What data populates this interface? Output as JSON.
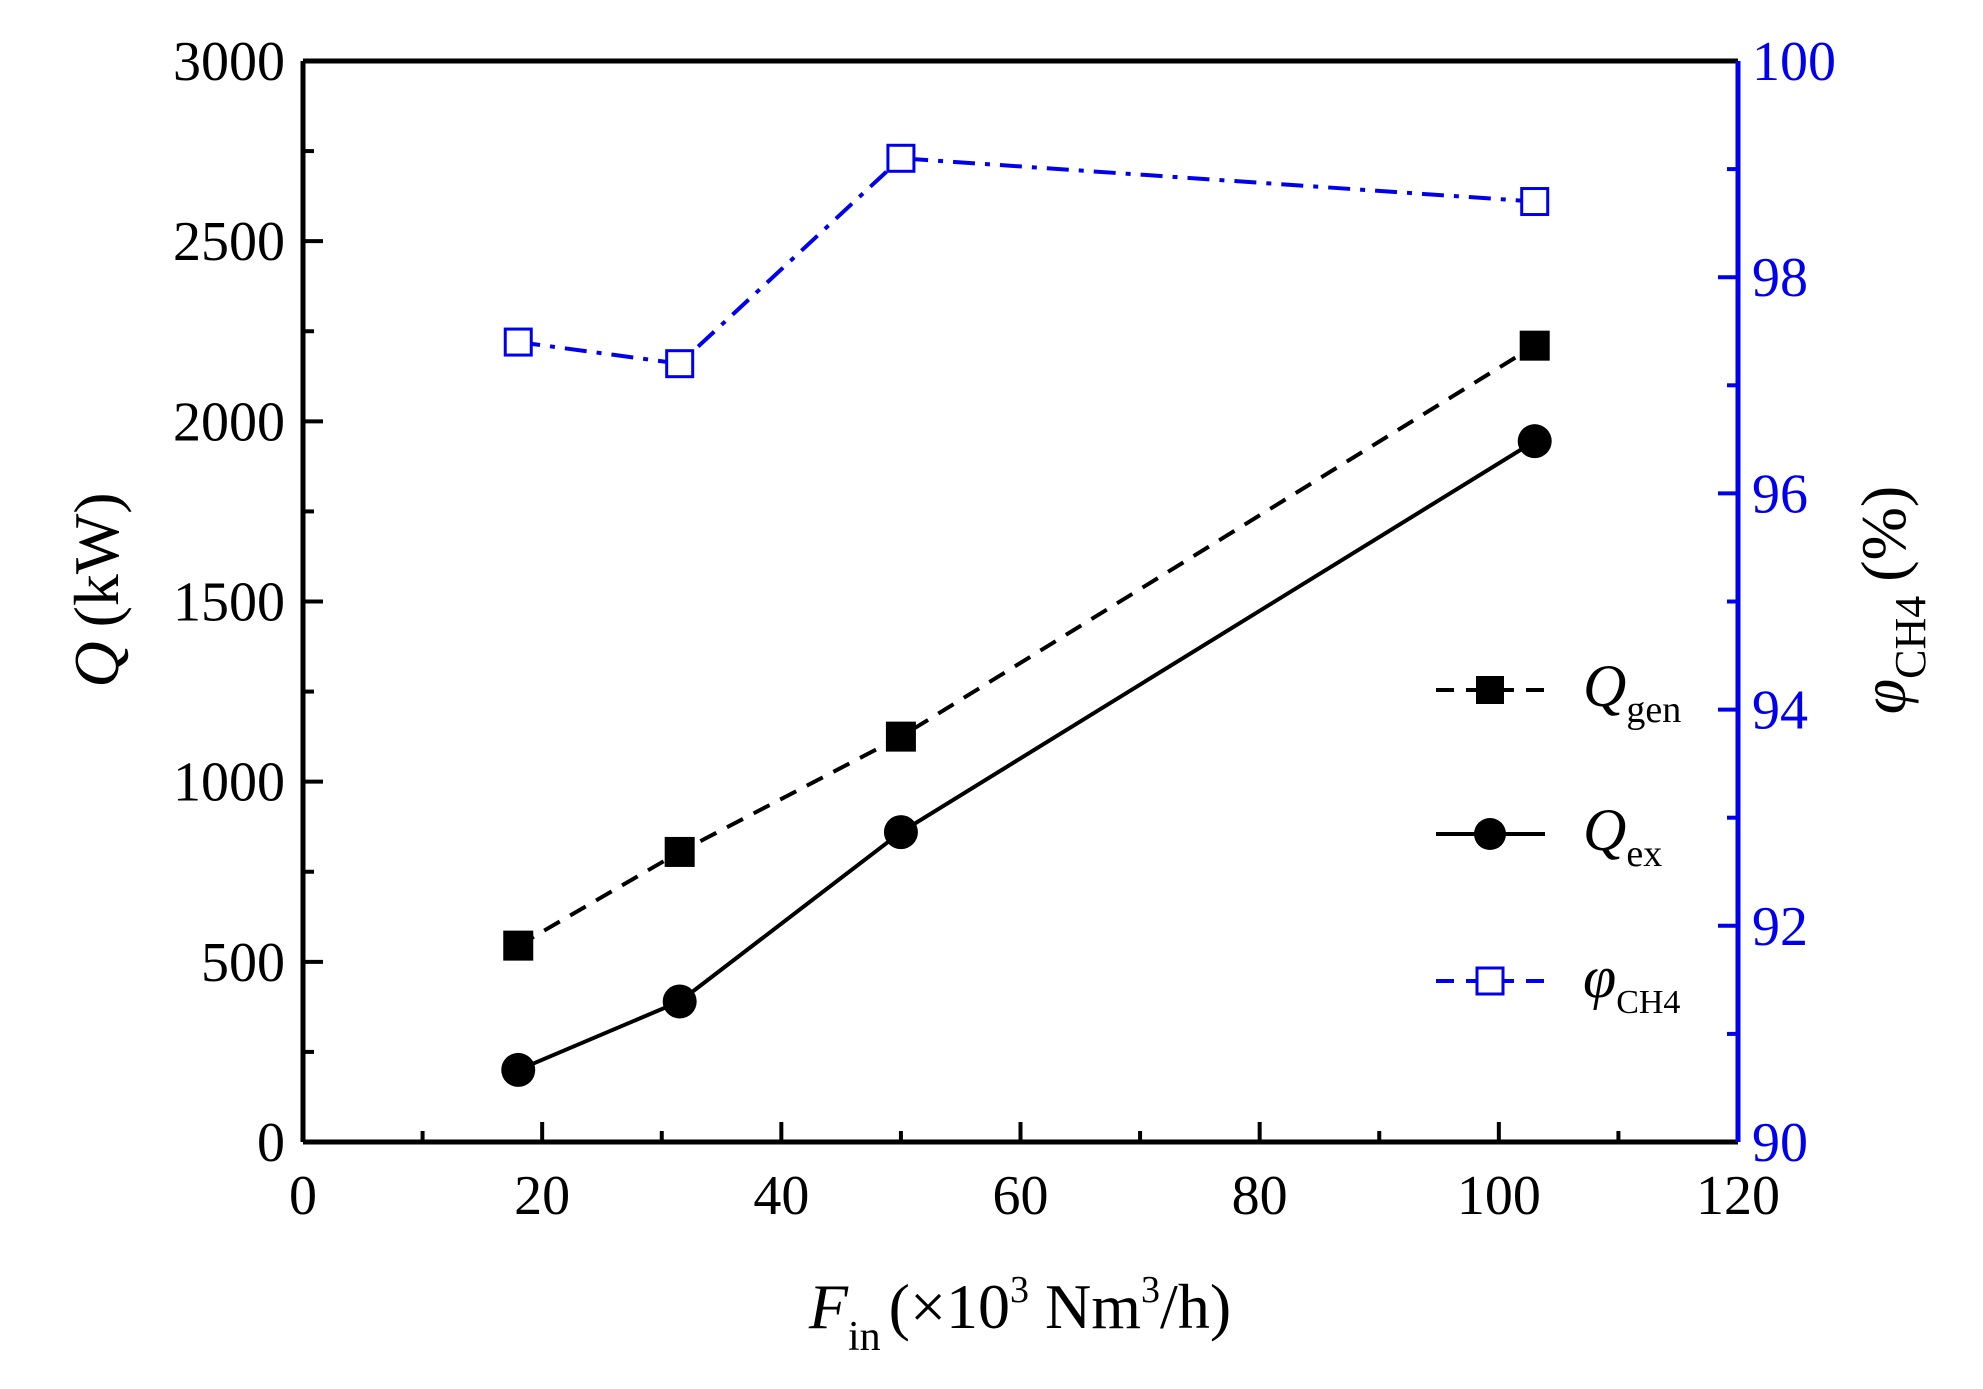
{
  "chart_data": {
    "type": "line",
    "x": [
      18,
      31.5,
      50,
      103
    ],
    "x_axis": {
      "var": "F",
      "sub": "in",
      "unit_open": "(×10",
      "unit_exp1": "3",
      "unit_mid": " Nm",
      "unit_exp2": "3",
      "unit_close": "/h)",
      "range": [
        0,
        120
      ],
      "ticks": [
        0,
        20,
        40,
        60,
        80,
        100,
        120
      ]
    },
    "y_left": {
      "var": "Q",
      "unit": "(kW)",
      "range": [
        0,
        3000
      ],
      "ticks": [
        0,
        500,
        1000,
        1500,
        2000,
        2500,
        3000
      ]
    },
    "y_right": {
      "var": "φ",
      "sub": "CH4",
      "unit": "(%)",
      "range": [
        90,
        100
      ],
      "ticks": [
        90,
        92,
        94,
        96,
        98,
        100
      ],
      "color": "#0000ee"
    },
    "series": [
      {
        "name": "Q",
        "sub": "gen",
        "axis": "left",
        "values": [
          545,
          805,
          1125,
          2210
        ],
        "color": "#000000",
        "marker": "square-filled",
        "line": "dashed"
      },
      {
        "name": "Q",
        "sub": "ex",
        "axis": "left",
        "values": [
          200,
          390,
          860,
          1945
        ],
        "color": "#000000",
        "marker": "circle-filled",
        "line": "solid"
      },
      {
        "name": "φ",
        "sub": "CH4",
        "axis": "right",
        "values": [
          97.4,
          97.2,
          99.1,
          98.7
        ],
        "color": "#0000ee",
        "marker": "square-open",
        "line": "dashdot"
      }
    ],
    "legend_position": "right-middle",
    "grid": false
  }
}
